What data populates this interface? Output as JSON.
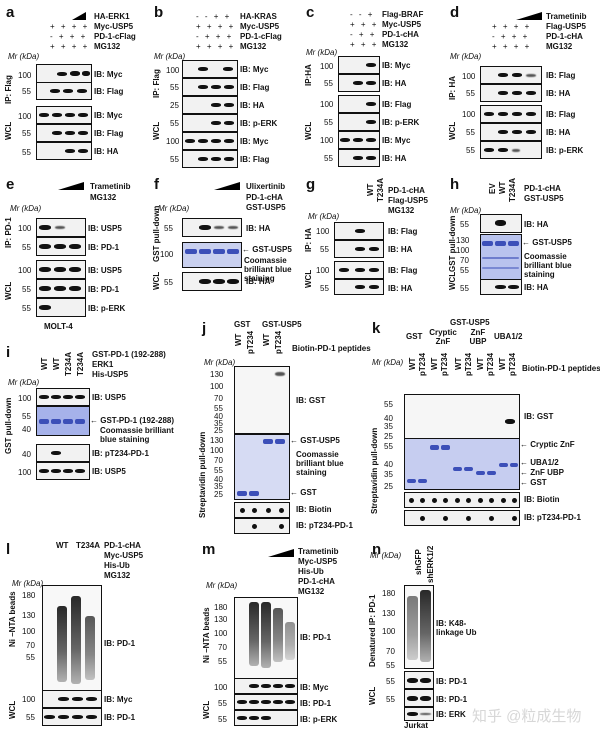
{
  "panels": {
    "a": {
      "letter": "a",
      "header": [
        "HA-ERK1",
        "Myc-USP5",
        "PD-1-cFlag",
        "MG132"
      ],
      "signs": [
        "- - + ◢",
        "+ + + +",
        "- + + +",
        "+ + + +"
      ],
      "mr": "Mr (kDa)",
      "ip": "IP: Flag",
      "wcl": "WCL",
      "ib": [
        "IB: Myc",
        "IB: Flag",
        "IB: Myc",
        "IB: Flag",
        "IB: HA"
      ],
      "ticks": [
        "100",
        "55",
        "100",
        "55",
        "55"
      ]
    },
    "b": {
      "letter": "b",
      "header": [
        "HA-KRAS",
        "Myc-USP5",
        "PD-1-cFlag",
        "MG132"
      ],
      "signs": [
        "- - + +",
        "+ + + +",
        "- + + +",
        "+ + + +"
      ],
      "mr": "Mr (kDa)",
      "ip": "IP: Flag",
      "wcl": "WCL",
      "ib": [
        "IB: Myc",
        "IB: Flag",
        "IB: HA",
        "IB: p-ERK",
        "IB: Myc",
        "IB: Flag"
      ],
      "ticks": [
        "100",
        "55",
        "25",
        "55",
        "100",
        "55"
      ]
    },
    "c": {
      "letter": "c",
      "header": [
        "Flag-BRAF",
        "Myc-USP5",
        "PD-1-cHA",
        "MG132"
      ],
      "signs": [
        "- - +",
        "+ + +",
        "- + +",
        "+ + +"
      ],
      "mr": "Mr (kDa)",
      "ip": "IP:HA",
      "wcl": "WCL",
      "ib": [
        "IB: Myc",
        "IB: HA",
        "IB: Flag",
        "IB: p-ERK",
        "IB: Myc",
        "IB: HA"
      ],
      "ticks": [
        "100",
        "55",
        "100",
        "55",
        "100",
        "55"
      ]
    },
    "d": {
      "letter": "d",
      "header": [
        "Trametinib",
        "Flag-USP5",
        "PD-1-cHA",
        "MG132"
      ],
      "signs": [
        "- - ◢",
        "+ + + +",
        "- + + +",
        "+ + + +"
      ],
      "mr": "Mr (kDa)",
      "ip": "IP: HA",
      "wcl": "WCL",
      "ib": [
        "IB: Flag",
        "IB: HA",
        "IB: Flag",
        "IB: HA",
        "IB: p-ERK"
      ],
      "ticks": [
        "100",
        "55",
        "100",
        "55",
        "55"
      ]
    },
    "e": {
      "letter": "e",
      "header": [
        "Trametinib",
        "MG132"
      ],
      "mr": "Mr (kDa)",
      "ip": "IP: PD-1",
      "wcl": "WCL",
      "ib": [
        "IB: USP5",
        "IB: PD-1",
        "IB: USP5",
        "IB: PD-1",
        "IB: p-ERK"
      ],
      "ticks": [
        "100",
        "55",
        "100",
        "55",
        "55"
      ],
      "cell": "MOLT-4"
    },
    "f": {
      "letter": "f",
      "header": [
        "Ulixertinib",
        "PD-1-cHA",
        "GST-USP5"
      ],
      "mr": "Mr (kDa)",
      "pd": "GST pull-down",
      "wcl": "WCL",
      "ib": [
        "IB: HA",
        "IB: HA"
      ],
      "ticks": [
        "55",
        "100",
        "55"
      ],
      "arrow": "GST-USP5",
      "coom": "Coomassie brilliant blue staining"
    },
    "g": {
      "letter": "g",
      "cols": [
        "WT",
        "T234A"
      ],
      "header": [
        "PD-1-cHA",
        "Flag-USP5",
        "MG132"
      ],
      "mr": "Mr (kDa)",
      "ip": "IP: HA",
      "wcl": "WCL",
      "ib": [
        "IB: Flag",
        "IB: HA",
        "IB: Flag",
        "IB: HA"
      ],
      "ticks": [
        "100",
        "55",
        "100",
        "55"
      ]
    },
    "h": {
      "letter": "h",
      "cols": [
        "EV",
        "WT",
        "T234A"
      ],
      "header": [
        "PD-1-cHA",
        "GST-USP5"
      ],
      "mr": "Mr (kDa)",
      "pd": "GST pull-down",
      "wcl": "WCL",
      "ib": [
        "IB: HA",
        "IB: HA"
      ],
      "ticks": [
        "55",
        "130",
        "100",
        "70",
        "55",
        "55"
      ],
      "arrow": "GST-USP5",
      "coom": "Coomassie brilliant blue staining"
    },
    "i": {
      "letter": "i",
      "cols": [
        "WT",
        "WT",
        "T234A",
        "T234A"
      ],
      "header": [
        "GST-PD-1 (192-288)",
        "ERK1",
        "His-USP5"
      ],
      "mr": "Mr (kDa)",
      "pd": "GST pull-down",
      "ib": [
        "IB: USP5",
        "IB: pT234-PD-1",
        "IB: USP5"
      ],
      "ticks": [
        "100",
        "55",
        "40",
        "100"
      ],
      "arrow": "GST-PD-1 (192-288)",
      "coom": "Coomassie brilliant blue staining"
    },
    "j": {
      "letter": "j",
      "groups": [
        "GST",
        "GST-USP5"
      ],
      "cols": [
        "WT",
        "pT234",
        "WT",
        "pT234"
      ],
      "header": "Biotin-PD-1 peptides",
      "mr": "Mr (kDa)",
      "pd": "Streptavidin pull-down",
      "ib": [
        "IB: GST",
        "IB: Biotin",
        "IB: pT234-PD-1"
      ],
      "ticks": [
        "130",
        "100",
        "70",
        "55",
        "40",
        "35",
        "25",
        "130",
        "100",
        "70",
        "55",
        "40",
        "35",
        "25"
      ],
      "arrows": [
        "GST-USP5",
        "GST"
      ],
      "coom": "Coomassie brilliant blue staining"
    },
    "k": {
      "letter": "k",
      "groups": [
        "GST-USP5",
        "GST",
        "Cryptic ZnF",
        "ZnF UBP",
        "UBA1/2"
      ],
      "cols": [
        "WT",
        "pT234",
        "WT",
        "pT234",
        "WT",
        "pT234",
        "WT",
        "pT234",
        "WT",
        "pT234"
      ],
      "header": "Biotin-PD-1 peptides",
      "mr": "Mr (kDa)",
      "pd": "Streptavidin pull-down",
      "ib": [
        "IB: GST",
        "IB: Biotin",
        "IB: pT234-PD-1"
      ],
      "ticks": [
        "55",
        "40",
        "35",
        "25",
        "55",
        "40",
        "35",
        "25"
      ],
      "arrows": [
        "Cryptic ZnF",
        "UBA1/2",
        "ZnF UBP",
        "GST"
      ]
    },
    "l": {
      "letter": "l",
      "groups": [
        "WT",
        "T234A"
      ],
      "header": [
        "PD-1-cHA",
        "Myc-USP5",
        "His-Ub",
        "MG132"
      ],
      "mr": "Mr (kDa)",
      "pd": "Ni –NTA beads",
      "wcl": "WCL",
      "ib": [
        "IB: PD-1",
        "IB: Myc",
        "IB: PD-1"
      ],
      "ticks": [
        "180",
        "130",
        "100",
        "70",
        "55",
        "100",
        "55"
      ]
    },
    "m": {
      "letter": "m",
      "header": [
        "Trametinib",
        "Myc-USP5",
        "His-Ub",
        "PD-1-cHA",
        "MG132"
      ],
      "mr": "Mr (kDa)",
      "pd": "Ni –NTA beads",
      "wcl": "WCL",
      "ib": [
        "IB: PD-1",
        "IB: Myc",
        "IB: PD-1",
        "IB: p-ERK"
      ],
      "ticks": [
        "180",
        "130",
        "100",
        "70",
        "55",
        "100",
        "55",
        "55"
      ]
    },
    "n": {
      "letter": "n",
      "cols": [
        "shGFP",
        "shERK1/2"
      ],
      "mr": "Mr (kDa)",
      "ip": "Denatured IP: PD-1",
      "wcl": "WCL",
      "ib": [
        "IB: K48-linkage Ub",
        "IB: PD-1",
        "IB: PD-1",
        "IB: ERK"
      ],
      "ticks": [
        "180",
        "130",
        "100",
        "70",
        "55",
        "55",
        "55"
      ],
      "cell": "Jurkat"
    }
  },
  "watermark": "知乎 @粒成生物"
}
